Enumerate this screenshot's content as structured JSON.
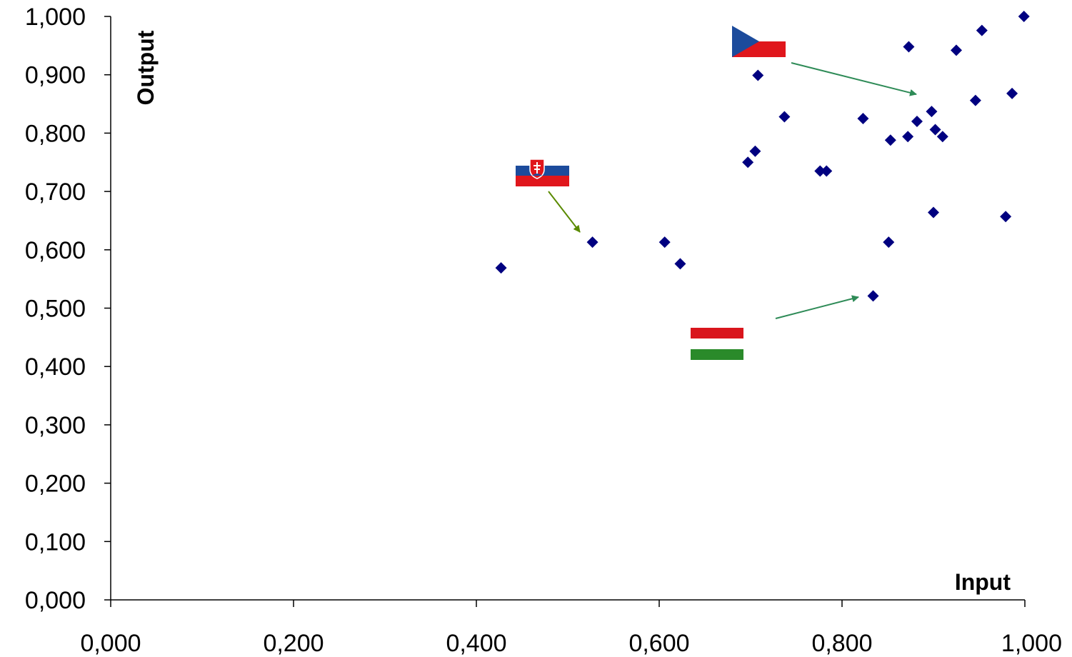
{
  "chart_data": {
    "type": "scatter",
    "xlabel": "Input",
    "ylabel": "Output",
    "xlim": [
      0,
      1
    ],
    "ylim": [
      0,
      1
    ],
    "x_ticks": [
      "0,000",
      "0,200",
      "0,400",
      "0,600",
      "0,800",
      "1,000"
    ],
    "y_ticks": [
      "0,000",
      "0,100",
      "0,200",
      "0,300",
      "0,400",
      "0,500",
      "0,600",
      "0,700",
      "0,800",
      "0,900",
      "1,000"
    ],
    "grid": false,
    "marker_color": "#000080",
    "points": [
      {
        "x": 0.427,
        "y": 0.569
      },
      {
        "x": 0.527,
        "y": 0.613
      },
      {
        "x": 0.606,
        "y": 0.613
      },
      {
        "x": 0.623,
        "y": 0.576
      },
      {
        "x": 0.697,
        "y": 0.75
      },
      {
        "x": 0.705,
        "y": 0.769
      },
      {
        "x": 0.708,
        "y": 0.899
      },
      {
        "x": 0.737,
        "y": 0.828
      },
      {
        "x": 0.776,
        "y": 0.735
      },
      {
        "x": 0.783,
        "y": 0.735
      },
      {
        "x": 0.823,
        "y": 0.825
      },
      {
        "x": 0.834,
        "y": 0.521
      },
      {
        "x": 0.851,
        "y": 0.613
      },
      {
        "x": 0.853,
        "y": 0.788
      },
      {
        "x": 0.872,
        "y": 0.794
      },
      {
        "x": 0.873,
        "y": 0.948
      },
      {
        "x": 0.882,
        "y": 0.82
      },
      {
        "x": 0.898,
        "y": 0.837
      },
      {
        "x": 0.9,
        "y": 0.664
      },
      {
        "x": 0.902,
        "y": 0.806
      },
      {
        "x": 0.91,
        "y": 0.794
      },
      {
        "x": 0.925,
        "y": 0.942
      },
      {
        "x": 0.946,
        "y": 0.856
      },
      {
        "x": 0.953,
        "y": 0.976
      },
      {
        "x": 0.979,
        "y": 0.657
      },
      {
        "x": 0.986,
        "y": 0.868
      },
      {
        "x": 0.999,
        "y": 1.0
      }
    ],
    "annotations": [
      {
        "flag": "czech-republic",
        "points_to": {
          "x": 0.882,
          "y": 0.872
        },
        "arrow_color": "#2e8b57"
      },
      {
        "flag": "slovakia",
        "points_to": {
          "x": 0.514,
          "y": 0.629
        },
        "arrow_color": "#5a8a00"
      },
      {
        "flag": "hungary",
        "points_to": {
          "x": 0.82,
          "y": 0.519
        },
        "arrow_color": "#2e8b57"
      }
    ]
  }
}
